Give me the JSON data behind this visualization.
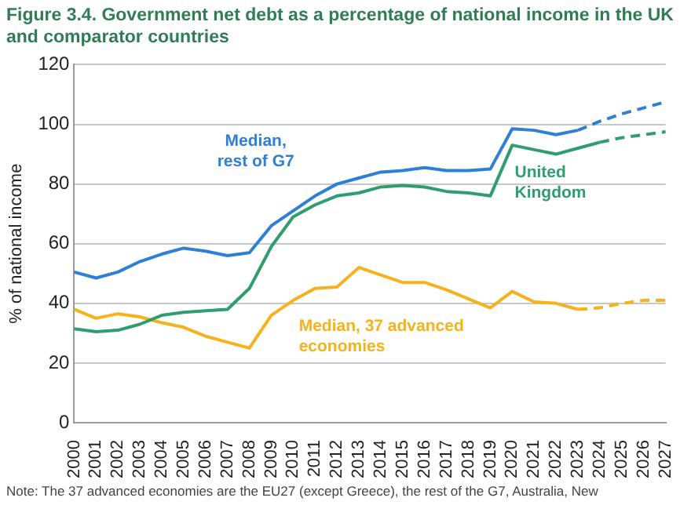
{
  "chart_data": {
    "type": "line",
    "title": "Figure 3.4. Government net debt as a percentage of national income in the UK and comparator countries",
    "ylabel": "% of national income",
    "categories": [
      "2000",
      "2001",
      "2002",
      "2003",
      "2004",
      "2005",
      "2006",
      "2007",
      "2008",
      "2009",
      "2010",
      "2011",
      "2012",
      "2013",
      "2014",
      "2015",
      "2016",
      "2017",
      "2018",
      "2019",
      "2020",
      "2021",
      "2022",
      "2023",
      "2024",
      "2025",
      "2026",
      "2027"
    ],
    "series": [
      {
        "name": "Median, rest of G7",
        "color": "#2e7fd6",
        "values": [
          50.5,
          48.5,
          50.5,
          54,
          56.5,
          58.5,
          57.5,
          56,
          57,
          66,
          71,
          76,
          80,
          82,
          84,
          84.5,
          85.5,
          84.5,
          84.5,
          85,
          98.5,
          98,
          96.5,
          98,
          null,
          null,
          null,
          null
        ]
      },
      {
        "name": "United Kingdom",
        "color": "#2e9e6c",
        "values": [
          31.5,
          30.5,
          31,
          33,
          36,
          37,
          37.5,
          38,
          45,
          59,
          69,
          73,
          76,
          77,
          79,
          79.5,
          79,
          77.5,
          77,
          76,
          93,
          91.5,
          90,
          92,
          94,
          null,
          null,
          null
        ]
      },
      {
        "name": "Median, 37 advanced economies",
        "color": "#f5b21b",
        "values": [
          38,
          35,
          36.5,
          35.5,
          33.5,
          32,
          29,
          27,
          25,
          36,
          41,
          45,
          45.5,
          52,
          49.5,
          47,
          47,
          44.5,
          41.5,
          38.5,
          44,
          40.5,
          40,
          38,
          null,
          null,
          null,
          null
        ]
      },
      {
        "color": "#2e7fd6",
        "line_style": "dashed",
        "values": [
          null,
          null,
          null,
          null,
          null,
          null,
          null,
          null,
          null,
          null,
          null,
          null,
          null,
          null,
          null,
          null,
          null,
          null,
          null,
          null,
          null,
          null,
          null,
          98,
          101,
          103.5,
          105.5,
          107.5
        ]
      },
      {
        "color": "#2e9e6c",
        "line_style": "dashed",
        "values": [
          null,
          null,
          null,
          null,
          null,
          null,
          null,
          null,
          null,
          null,
          null,
          null,
          null,
          null,
          null,
          null,
          null,
          null,
          null,
          null,
          null,
          null,
          null,
          null,
          94,
          95.5,
          96.5,
          97.5
        ]
      },
      {
        "color": "#f5b21b",
        "line_style": "dashed",
        "values": [
          null,
          null,
          null,
          null,
          null,
          null,
          null,
          null,
          null,
          null,
          null,
          null,
          null,
          null,
          null,
          null,
          null,
          null,
          null,
          null,
          null,
          null,
          null,
          38,
          38.5,
          40,
          41,
          41
        ]
      }
    ],
    "annotations": [
      "Note: The 37 advanced economies are the EU27 (except Greece), the rest of the G7, Australia, New"
    ],
    "ylim": [
      0,
      120
    ],
    "yticks": [
      0,
      20,
      40,
      60,
      80,
      100,
      120
    ],
    "grid": "y",
    "legend": false,
    "marker": "none"
  }
}
